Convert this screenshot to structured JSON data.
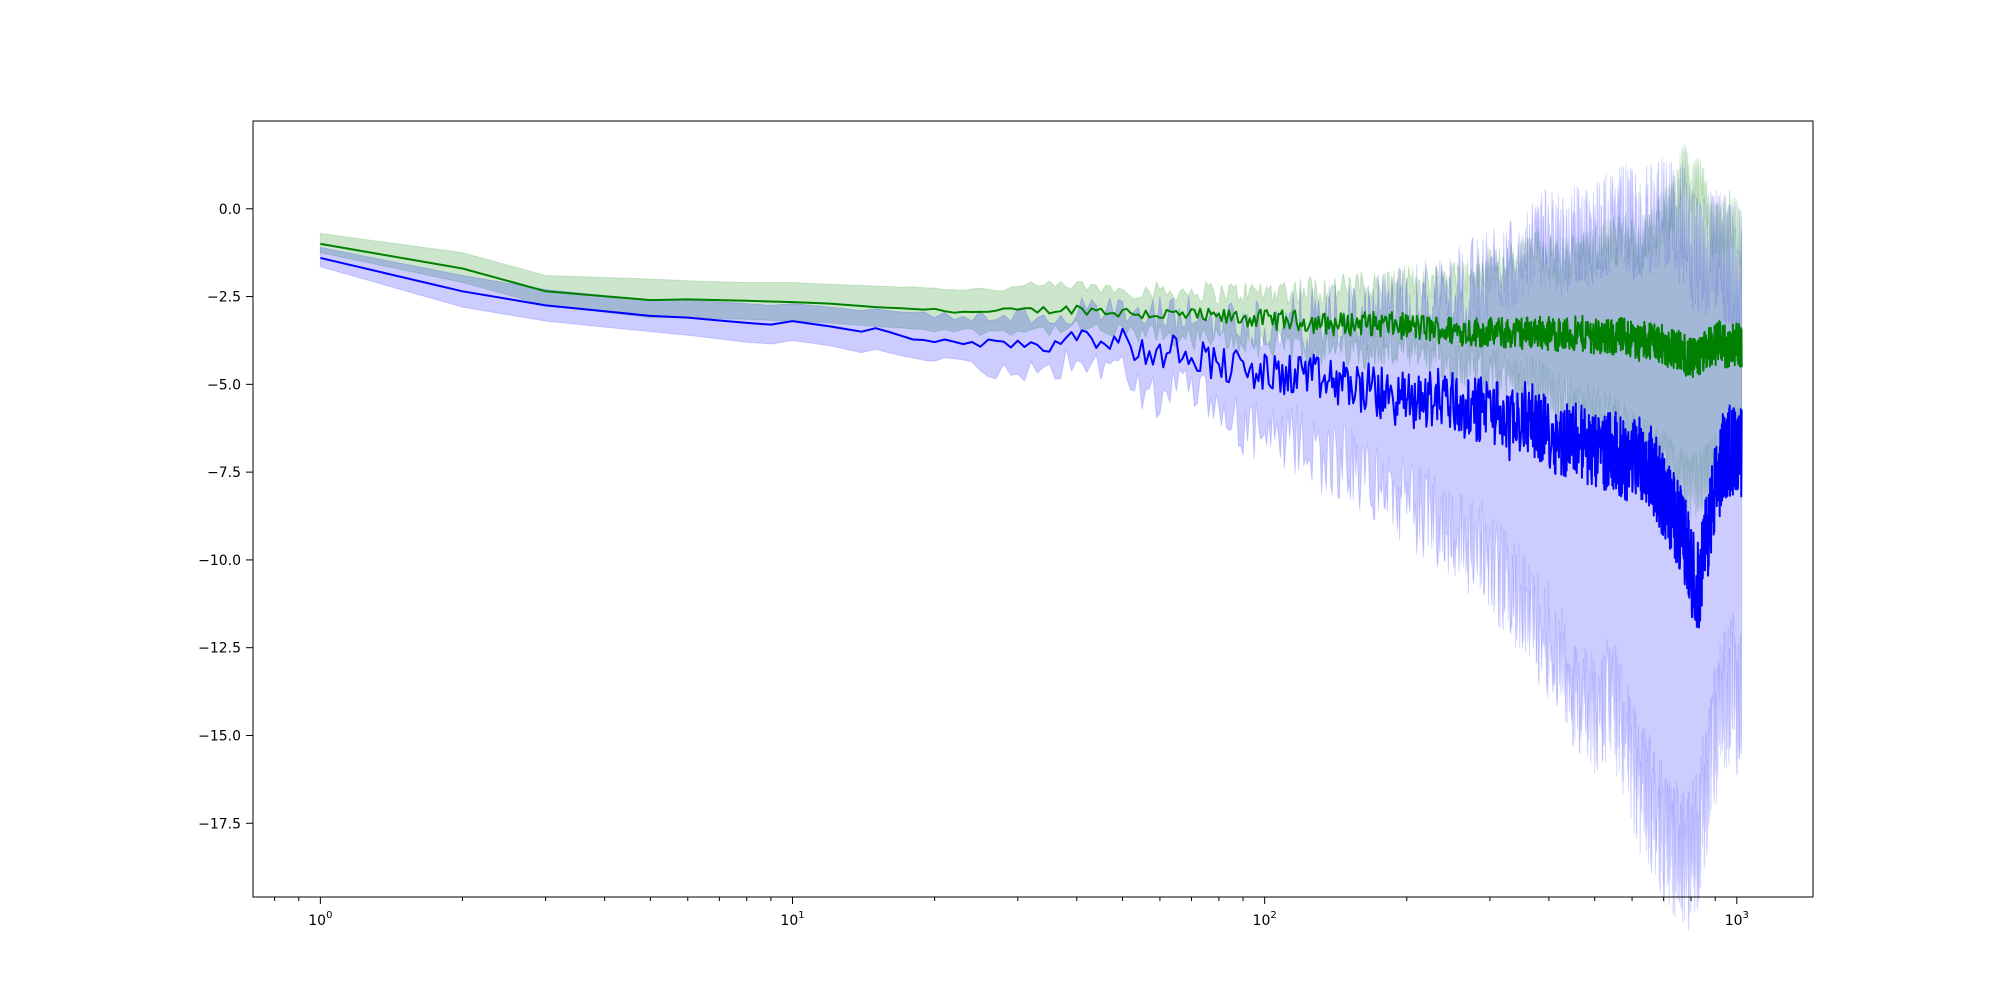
{
  "chart_data": {
    "type": "line",
    "title": "",
    "xlabel": "",
    "ylabel": "",
    "xscale": "log",
    "xlim": [
      0.72,
      1450
    ],
    "ylim": [
      -19.6,
      2.5
    ],
    "grid": false,
    "legend": "none",
    "x_ticks": [
      {
        "value": 1,
        "base": "10",
        "exp": "0"
      },
      {
        "value": 10,
        "base": "10",
        "exp": "1"
      },
      {
        "value": 100,
        "base": "10",
        "exp": "2"
      },
      {
        "value": 1000,
        "base": "10",
        "exp": "3"
      }
    ],
    "y_ticks": [
      {
        "value": 0.0,
        "label": "0.0"
      },
      {
        "value": -2.5,
        "label": "−2.5"
      },
      {
        "value": -5.0,
        "label": "−5.0"
      },
      {
        "value": -7.5,
        "label": "−7.5"
      },
      {
        "value": -10.0,
        "label": "−10.0"
      },
      {
        "value": -12.5,
        "label": "−12.5"
      },
      {
        "value": -15.0,
        "label": "−15.0"
      },
      {
        "value": -17.5,
        "label": "−17.5"
      }
    ],
    "series": [
      {
        "color": "#008000",
        "band_color": "#008000",
        "x": [
          1,
          2,
          3,
          5,
          6,
          8,
          10,
          12,
          15,
          20,
          25,
          30,
          35,
          40,
          45,
          50,
          60,
          70,
          80,
          90,
          100,
          120,
          140,
          160,
          180,
          200,
          240,
          280,
          330,
          380,
          430,
          480,
          530,
          580,
          620,
          660,
          700,
          740,
          770,
          800,
          840,
          880,
          920,
          960,
          1000,
          1024
        ],
        "y": [
          -1.0,
          -1.7,
          -2.35,
          -2.6,
          -2.58,
          -2.62,
          -2.66,
          -2.7,
          -2.8,
          -2.88,
          -2.95,
          -2.9,
          -2.88,
          -2.85,
          -2.9,
          -2.95,
          -3.0,
          -3.05,
          -3.1,
          -3.1,
          -3.15,
          -3.2,
          -3.3,
          -3.25,
          -3.3,
          -3.35,
          -3.45,
          -3.5,
          -3.55,
          -3.5,
          -3.6,
          -3.55,
          -3.7,
          -3.6,
          -3.8,
          -3.7,
          -3.9,
          -4.0,
          -4.1,
          -4.3,
          -4.2,
          -3.9,
          -3.8,
          -4.0,
          -3.8,
          -3.9
        ],
        "upper": [
          -0.7,
          -1.25,
          -1.9,
          -2.0,
          -2.05,
          -2.1,
          -2.1,
          -2.15,
          -2.2,
          -2.25,
          -2.3,
          -2.25,
          -2.2,
          -2.2,
          -2.25,
          -2.3,
          -2.35,
          -2.35,
          -2.4,
          -2.4,
          -2.35,
          -2.3,
          -2.3,
          -2.25,
          -2.2,
          -2.15,
          -2.0,
          -1.9,
          -1.6,
          -1.2,
          -1.5,
          -1.3,
          -1.0,
          -0.8,
          -1.2,
          -0.6,
          -0.3,
          0.2,
          1.2,
          0.5,
          0.7,
          -0.5,
          -0.7,
          -0.3,
          -0.5,
          -1.0
        ],
        "lower": [
          -1.25,
          -2.1,
          -2.75,
          -3.1,
          -3.1,
          -3.15,
          -3.2,
          -3.25,
          -3.35,
          -3.45,
          -3.5,
          -3.45,
          -3.45,
          -3.4,
          -3.5,
          -3.55,
          -3.6,
          -3.7,
          -3.75,
          -3.8,
          -3.85,
          -3.95,
          -4.0,
          -4.0,
          -4.05,
          -4.1,
          -4.3,
          -4.5,
          -4.8,
          -5.0,
          -5.5,
          -5.8,
          -6.0,
          -6.3,
          -6.8,
          -7.0,
          -7.2,
          -7.5,
          -7.8,
          -8.0,
          -7.7,
          -7.5,
          -7.2,
          -6.8,
          -6.5,
          -6.5
        ]
      },
      {
        "color": "#0000ff",
        "band_color": "#0000ff",
        "x": [
          1,
          2,
          3,
          5,
          6,
          8,
          9,
          10,
          12,
          14,
          15,
          18,
          22,
          26,
          30,
          35,
          38,
          42,
          46,
          50,
          55,
          60,
          65,
          70,
          80,
          90,
          100,
          110,
          120,
          130,
          150,
          170,
          190,
          210,
          240,
          270,
          300,
          330,
          360,
          400,
          430,
          460,
          500,
          540,
          580,
          620,
          660,
          700,
          740,
          780,
          800,
          830,
          860,
          900,
          940,
          980,
          1000,
          1024
        ],
        "y": [
          -1.4,
          -2.35,
          -2.75,
          -3.05,
          -3.1,
          -3.25,
          -3.3,
          -3.2,
          -3.35,
          -3.5,
          -3.4,
          -3.7,
          -3.75,
          -3.85,
          -3.8,
          -3.9,
          -3.6,
          -3.5,
          -3.8,
          -3.7,
          -4.1,
          -4.2,
          -3.9,
          -4.1,
          -4.4,
          -4.6,
          -4.7,
          -4.8,
          -4.6,
          -4.9,
          -5.0,
          -5.2,
          -5.4,
          -5.5,
          -5.3,
          -5.8,
          -5.6,
          -6.2,
          -5.9,
          -6.4,
          -6.6,
          -6.5,
          -7.0,
          -6.8,
          -7.2,
          -7.0,
          -7.4,
          -8.2,
          -8.8,
          -9.5,
          -10.3,
          -10.8,
          -9.5,
          -8.0,
          -7.0,
          -6.8,
          -7.2,
          -7.0
        ],
        "upper": [
          -1.1,
          -1.9,
          -2.3,
          -2.6,
          -2.6,
          -2.7,
          -2.75,
          -2.7,
          -2.8,
          -2.9,
          -2.85,
          -3.0,
          -3.05,
          -3.1,
          -3.05,
          -3.0,
          -2.9,
          -2.85,
          -3.0,
          -2.95,
          -3.1,
          -3.1,
          -3.0,
          -3.1,
          -3.2,
          -3.25,
          -3.3,
          -3.35,
          -3.2,
          -3.2,
          -3.1,
          -3.0,
          -2.8,
          -2.6,
          -2.4,
          -2.2,
          -1.8,
          -1.5,
          -1.2,
          -0.8,
          -1.0,
          -0.8,
          -0.6,
          -0.4,
          -0.3,
          -0.5,
          -0.2,
          0.0,
          -0.3,
          -0.6,
          -1.0,
          -1.5,
          -1.3,
          -1.2,
          -1.4,
          -1.6,
          -1.8,
          -1.8
        ],
        "lower": [
          -1.65,
          -2.8,
          -3.2,
          -3.5,
          -3.6,
          -3.8,
          -3.85,
          -3.75,
          -3.9,
          -4.1,
          -4.0,
          -4.3,
          -4.4,
          -4.6,
          -4.6,
          -4.8,
          -4.4,
          -4.2,
          -4.6,
          -4.6,
          -5.2,
          -5.4,
          -5.0,
          -5.3,
          -5.8,
          -6.2,
          -6.5,
          -6.8,
          -6.5,
          -7.0,
          -7.3,
          -7.8,
          -8.2,
          -8.6,
          -8.9,
          -9.5,
          -10.0,
          -10.8,
          -11.5,
          -12.3,
          -13.0,
          -14.0,
          -14.5,
          -13.8,
          -15.0,
          -16.5,
          -17.0,
          -17.8,
          -18.2,
          -18.6,
          -18.5,
          -17.8,
          -16.5,
          -15.0,
          -14.0,
          -13.5,
          -14.0,
          -14.0
        ]
      }
    ]
  }
}
